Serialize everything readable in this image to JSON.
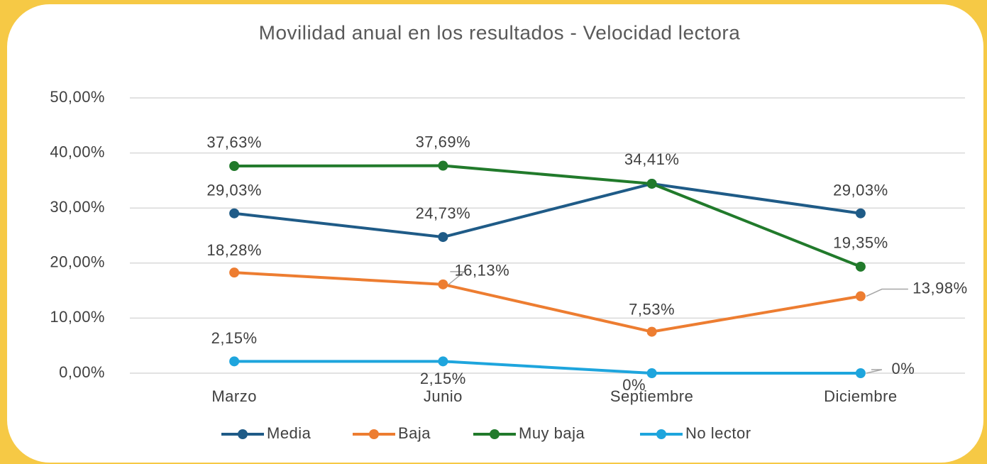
{
  "chart_data": {
    "type": "line",
    "title": "Movilidad anual en los resultados - Velocidad lectora",
    "categories": [
      "Marzo",
      "Junio",
      "Septiembre",
      "Diciembre"
    ],
    "series": [
      {
        "name": "Media",
        "color": "#1f5b87",
        "values": [
          29.03,
          24.73,
          34.41,
          29.03
        ],
        "value_labels": [
          "29,03%",
          "24,73%",
          "34,41%",
          "29,03%"
        ]
      },
      {
        "name": "Baja",
        "color": "#ed7d31",
        "values": [
          18.28,
          16.13,
          7.53,
          13.98
        ],
        "value_labels": [
          "18,28%",
          "16,13%",
          "7,53%",
          "13,98%"
        ]
      },
      {
        "name": "Muy baja",
        "color": "#217a2b",
        "values": [
          37.63,
          37.69,
          34.41,
          19.35
        ],
        "value_labels": [
          "37,63%",
          "37,69%",
          null,
          "19,35%"
        ]
      },
      {
        "name": "No lector",
        "color": "#1ea5dd",
        "values": [
          2.15,
          2.15,
          0,
          0
        ],
        "value_labels": [
          "2,15%",
          "2,15%",
          "0%",
          "0%"
        ]
      }
    ],
    "ylim": [
      0,
      50
    ],
    "yticks": [
      {
        "value": 0,
        "label": "0,00%"
      },
      {
        "value": 10,
        "label": "10,00%"
      },
      {
        "value": 20,
        "label": "20,00%"
      },
      {
        "value": 30,
        "label": "30,00%"
      },
      {
        "value": 40,
        "label": "40,00%"
      },
      {
        "value": 50,
        "label": "50,00%"
      }
    ],
    "grid": true,
    "legend": "bottom"
  }
}
